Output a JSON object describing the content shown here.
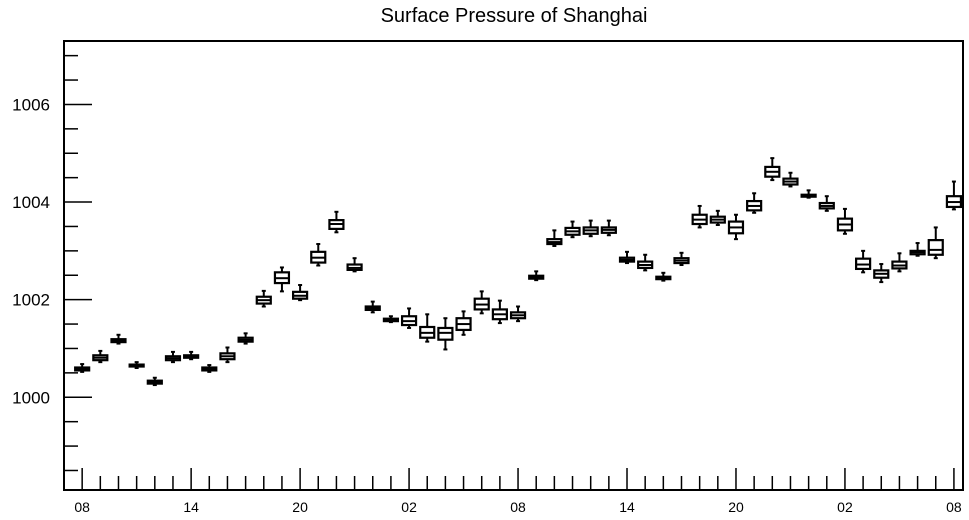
{
  "chart_data": {
    "type": "box",
    "title": "Surface Pressure of Shanghai",
    "xlabel": "",
    "ylabel": "",
    "ylim": [
      998.1,
      1007.3
    ],
    "y_ticks": [
      1000,
      1002,
      1004,
      1006
    ],
    "y_tick_labels": [
      "1000",
      "1002",
      "1004",
      "1006"
    ],
    "x_ticks": [
      0,
      6,
      12,
      18,
      24,
      30,
      36,
      42,
      48
    ],
    "x_tick_labels": [
      "08",
      "14",
      "20",
      "02",
      "08",
      "14",
      "20",
      "02",
      "08"
    ],
    "xlim": [
      -1,
      48.5
    ],
    "grid": false,
    "boxes": [
      {
        "x": 0,
        "whisker_low": 1000.52,
        "q1": 1000.55,
        "median": 1000.58,
        "q3": 1000.61,
        "whisker_high": 1000.68
      },
      {
        "x": 1,
        "whisker_low": 1000.72,
        "q1": 1000.76,
        "median": 1000.81,
        "q3": 1000.86,
        "whisker_high": 1000.95
      },
      {
        "x": 2,
        "whisker_low": 1001.1,
        "q1": 1001.13,
        "median": 1001.16,
        "q3": 1001.19,
        "whisker_high": 1001.28
      },
      {
        "x": 3,
        "whisker_low": 1000.6,
        "q1": 1000.63,
        "median": 1000.65,
        "q3": 1000.67,
        "whisker_high": 1000.72
      },
      {
        "x": 4,
        "whisker_low": 1000.25,
        "q1": 1000.28,
        "median": 1000.31,
        "q3": 1000.34,
        "whisker_high": 1000.4
      },
      {
        "x": 5,
        "whisker_low": 1000.72,
        "q1": 1000.76,
        "median": 1000.8,
        "q3": 1000.84,
        "whisker_high": 1000.93
      },
      {
        "x": 6,
        "whisker_low": 1000.78,
        "q1": 1000.81,
        "median": 1000.84,
        "q3": 1000.86,
        "whisker_high": 1000.93
      },
      {
        "x": 7,
        "whisker_low": 1000.52,
        "q1": 1000.55,
        "median": 1000.58,
        "q3": 1000.61,
        "whisker_high": 1000.66
      },
      {
        "x": 8,
        "whisker_low": 1000.72,
        "q1": 1000.78,
        "median": 1000.84,
        "q3": 1000.9,
        "whisker_high": 1001.02
      },
      {
        "x": 9,
        "whisker_low": 1001.1,
        "q1": 1001.14,
        "median": 1001.18,
        "q3": 1001.22,
        "whisker_high": 1001.31
      },
      {
        "x": 10,
        "whisker_low": 1001.86,
        "q1": 1001.92,
        "median": 1001.99,
        "q3": 1002.06,
        "whisker_high": 1002.18
      },
      {
        "x": 11,
        "whisker_low": 1002.17,
        "q1": 1002.34,
        "median": 1002.44,
        "q3": 1002.56,
        "whisker_high": 1002.66
      },
      {
        "x": 12,
        "whisker_low": 1001.99,
        "q1": 1002.02,
        "median": 1002.08,
        "q3": 1002.16,
        "whisker_high": 1002.3
      },
      {
        "x": 13,
        "whisker_low": 1002.7,
        "q1": 1002.76,
        "median": 1002.86,
        "q3": 1002.98,
        "whisker_high": 1003.14
      },
      {
        "x": 14,
        "whisker_low": 1003.38,
        "q1": 1003.45,
        "median": 1003.55,
        "q3": 1003.63,
        "whisker_high": 1003.8
      },
      {
        "x": 15,
        "whisker_low": 1002.58,
        "q1": 1002.61,
        "median": 1002.65,
        "q3": 1002.72,
        "whisker_high": 1002.85
      },
      {
        "x": 16,
        "whisker_low": 1001.74,
        "q1": 1001.79,
        "median": 1001.82,
        "q3": 1001.86,
        "whisker_high": 1001.96
      },
      {
        "x": 17,
        "whisker_low": 1001.54,
        "q1": 1001.56,
        "median": 1001.58,
        "q3": 1001.61,
        "whisker_high": 1001.66
      },
      {
        "x": 18,
        "whisker_low": 1001.42,
        "q1": 1001.48,
        "median": 1001.56,
        "q3": 1001.66,
        "whisker_high": 1001.82
      },
      {
        "x": 19,
        "whisker_low": 1001.14,
        "q1": 1001.22,
        "median": 1001.32,
        "q3": 1001.44,
        "whisker_high": 1001.7
      },
      {
        "x": 20,
        "whisker_low": 1000.98,
        "q1": 1001.18,
        "median": 1001.32,
        "q3": 1001.42,
        "whisker_high": 1001.62
      },
      {
        "x": 21,
        "whisker_low": 1001.28,
        "q1": 1001.38,
        "median": 1001.5,
        "q3": 1001.62,
        "whisker_high": 1001.76
      },
      {
        "x": 22,
        "whisker_low": 1001.72,
        "q1": 1001.8,
        "median": 1001.9,
        "q3": 1002.02,
        "whisker_high": 1002.17
      },
      {
        "x": 23,
        "whisker_low": 1001.52,
        "q1": 1001.6,
        "median": 1001.7,
        "q3": 1001.8,
        "whisker_high": 1001.98
      },
      {
        "x": 24,
        "whisker_low": 1001.56,
        "q1": 1001.62,
        "median": 1001.68,
        "q3": 1001.74,
        "whisker_high": 1001.86
      },
      {
        "x": 25,
        "whisker_low": 1002.4,
        "q1": 1002.43,
        "median": 1002.46,
        "q3": 1002.49,
        "whisker_high": 1002.58
      },
      {
        "x": 26,
        "whisker_low": 1003.1,
        "q1": 1003.14,
        "median": 1003.18,
        "q3": 1003.24,
        "whisker_high": 1003.42
      },
      {
        "x": 27,
        "whisker_low": 1003.28,
        "q1": 1003.33,
        "median": 1003.4,
        "q3": 1003.47,
        "whisker_high": 1003.6
      },
      {
        "x": 28,
        "whisker_low": 1003.3,
        "q1": 1003.35,
        "median": 1003.42,
        "q3": 1003.48,
        "whisker_high": 1003.62
      },
      {
        "x": 29,
        "whisker_low": 1003.32,
        "q1": 1003.37,
        "median": 1003.43,
        "q3": 1003.48,
        "whisker_high": 1003.62
      },
      {
        "x": 30,
        "whisker_low": 1002.75,
        "q1": 1002.78,
        "median": 1002.82,
        "q3": 1002.86,
        "whisker_high": 1002.98
      },
      {
        "x": 31,
        "whisker_low": 1002.6,
        "q1": 1002.65,
        "median": 1002.71,
        "q3": 1002.78,
        "whisker_high": 1002.92
      },
      {
        "x": 32,
        "whisker_low": 1002.39,
        "q1": 1002.42,
        "median": 1002.44,
        "q3": 1002.47,
        "whisker_high": 1002.55
      },
      {
        "x": 33,
        "whisker_low": 1002.71,
        "q1": 1002.75,
        "median": 1002.8,
        "q3": 1002.85,
        "whisker_high": 1002.96
      },
      {
        "x": 34,
        "whisker_low": 1003.48,
        "q1": 1003.55,
        "median": 1003.64,
        "q3": 1003.74,
        "whisker_high": 1003.92
      },
      {
        "x": 35,
        "whisker_low": 1003.53,
        "q1": 1003.58,
        "median": 1003.64,
        "q3": 1003.7,
        "whisker_high": 1003.82
      },
      {
        "x": 36,
        "whisker_low": 1003.24,
        "q1": 1003.36,
        "median": 1003.48,
        "q3": 1003.6,
        "whisker_high": 1003.74
      },
      {
        "x": 37,
        "whisker_low": 1003.78,
        "q1": 1003.83,
        "median": 1003.92,
        "q3": 1004.02,
        "whisker_high": 1004.18
      },
      {
        "x": 38,
        "whisker_low": 1004.45,
        "q1": 1004.52,
        "median": 1004.62,
        "q3": 1004.72,
        "whisker_high": 1004.9
      },
      {
        "x": 39,
        "whisker_low": 1004.32,
        "q1": 1004.36,
        "median": 1004.42,
        "q3": 1004.48,
        "whisker_high": 1004.6
      },
      {
        "x": 40,
        "whisker_low": 1004.09,
        "q1": 1004.11,
        "median": 1004.13,
        "q3": 1004.15,
        "whisker_high": 1004.24
      },
      {
        "x": 41,
        "whisker_low": 1003.82,
        "q1": 1003.87,
        "median": 1003.92,
        "q3": 1003.98,
        "whisker_high": 1004.12
      },
      {
        "x": 42,
        "whisker_low": 1003.35,
        "q1": 1003.42,
        "median": 1003.54,
        "q3": 1003.66,
        "whisker_high": 1003.86
      },
      {
        "x": 43,
        "whisker_low": 1002.56,
        "q1": 1002.63,
        "median": 1002.72,
        "q3": 1002.84,
        "whisker_high": 1003.0
      },
      {
        "x": 44,
        "whisker_low": 1002.36,
        "q1": 1002.45,
        "median": 1002.53,
        "q3": 1002.6,
        "whisker_high": 1002.73
      },
      {
        "x": 45,
        "whisker_low": 1002.58,
        "q1": 1002.64,
        "median": 1002.7,
        "q3": 1002.78,
        "whisker_high": 1002.95
      },
      {
        "x": 46,
        "whisker_low": 1002.9,
        "q1": 1002.93,
        "median": 1002.97,
        "q3": 1003.0,
        "whisker_high": 1003.16
      },
      {
        "x": 47,
        "whisker_low": 1002.85,
        "q1": 1002.92,
        "median": 1003.02,
        "q3": 1003.22,
        "whisker_high": 1003.48
      },
      {
        "x": 48,
        "whisker_low": 1003.85,
        "q1": 1003.9,
        "median": 1004.0,
        "q3": 1004.12,
        "whisker_high": 1004.42
      }
    ]
  }
}
